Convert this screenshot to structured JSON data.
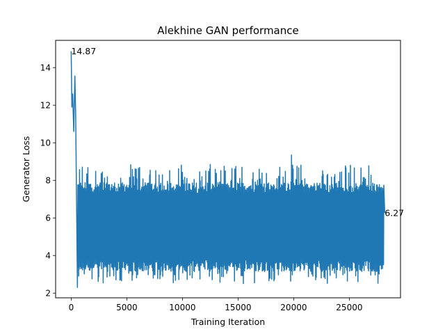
{
  "chart_data": {
    "type": "line",
    "title": "Alekhine GAN performance",
    "xlabel": "Training Iteration",
    "ylabel": "Generator Loss",
    "xlim": [
      -1400,
      29600
    ],
    "ylim": [
      1.75,
      15.45
    ],
    "xticks": [
      0,
      5000,
      10000,
      15000,
      20000,
      25000
    ],
    "yticks": [
      2,
      4,
      6,
      8,
      10,
      12,
      14
    ],
    "grid": false,
    "series": [
      {
        "color": "#1f77b4",
        "n_points": 28200,
        "first_value": 14.87,
        "last_value": 6.27,
        "band_low": 2.9,
        "band_high": 8.4,
        "notable_points": [
          {
            "x": 0,
            "y": 14.87
          },
          {
            "x": 60,
            "y": 11.9
          },
          {
            "x": 130,
            "y": 12.6
          },
          {
            "x": 230,
            "y": 10.6
          },
          {
            "x": 330,
            "y": 13.55
          },
          {
            "x": 400,
            "y": 11.6
          },
          {
            "x": 560,
            "y": 2.3
          },
          {
            "x": 19800,
            "y": 9.35
          },
          {
            "x": 28180,
            "y": 6.27
          }
        ]
      }
    ],
    "annotations": [
      {
        "text": "14.87",
        "x": 0,
        "y": 14.87
      },
      {
        "text": "6.27",
        "x": 28180,
        "y": 6.27
      }
    ]
  }
}
